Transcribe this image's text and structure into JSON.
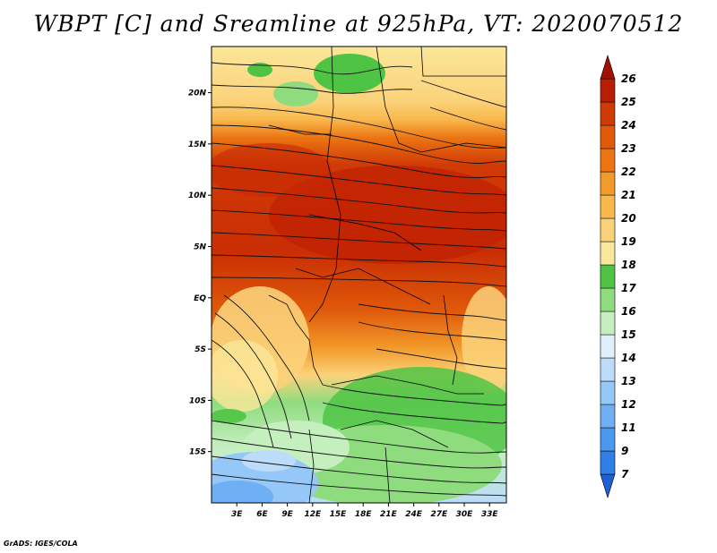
{
  "title": "WBPT [C] and Sreamline at 925hPa, VT: 2020070512",
  "credit": "GrADS: IGES/COLA",
  "map": {
    "lat_labels": [
      "20N",
      "15N",
      "10N",
      "5N",
      "EQ",
      "5S",
      "10S",
      "15S"
    ],
    "lon_labels": [
      "3E",
      "6E",
      "9E",
      "12E",
      "15E",
      "18E",
      "21E",
      "24E",
      "27E",
      "30E",
      "33E"
    ],
    "lat_values": [
      20,
      15,
      10,
      5,
      0,
      -5,
      -10,
      -15
    ],
    "lon_values": [
      3,
      6,
      9,
      12,
      15,
      18,
      21,
      24,
      27,
      30,
      33
    ],
    "lon_range": [
      0,
      35
    ],
    "lat_range": [
      -20,
      24.5
    ],
    "field": "wet-bulb potential temperature",
    "overlay": "streamlines with arrowheads",
    "boundaries": "country borders and coastlines"
  },
  "colorbar": {
    "levels": [
      "7",
      "9",
      "11",
      "12",
      "13",
      "14",
      "15",
      "16",
      "17",
      "18",
      "19",
      "20",
      "21",
      "22",
      "23",
      "24",
      "25",
      "26"
    ],
    "colors": [
      "#1f5fd6",
      "#2f7fe8",
      "#4a98f0",
      "#6fb0f5",
      "#95c8f8",
      "#bcdcfa",
      "#dff0fb",
      "#c6efc0",
      "#8fdc7f",
      "#4fc444",
      "#fbe79a",
      "#fbd27a",
      "#f8b84c",
      "#f29a2a",
      "#ec7512",
      "#e05a0a",
      "#d03a06",
      "#b81e02",
      "#a01200"
    ]
  }
}
